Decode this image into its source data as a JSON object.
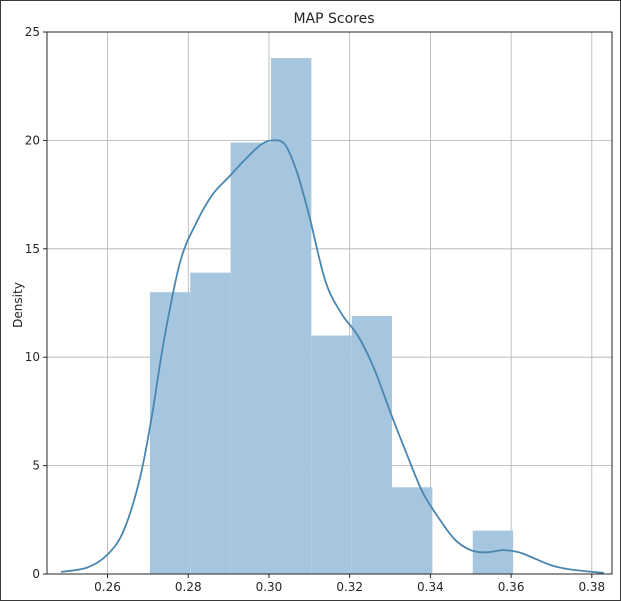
{
  "chart_data": {
    "type": "histogram",
    "title": "MAP Scores",
    "xlabel": "",
    "ylabel": "Density",
    "xlim": [
      0.245,
      0.385
    ],
    "ylim": [
      0,
      25
    ],
    "x_ticks": [
      0.26,
      0.28,
      0.3,
      0.32,
      0.34,
      0.36,
      0.38
    ],
    "x_tick_labels": [
      "0.26",
      "0.28",
      "0.30",
      "0.32",
      "0.34",
      "0.36",
      "0.38"
    ],
    "y_ticks": [
      0,
      5,
      10,
      15,
      20,
      25
    ],
    "y_tick_labels": [
      "0",
      "5",
      "10",
      "15",
      "20",
      "25"
    ],
    "grid": true,
    "bar_color": "#a6c6df",
    "kde_color": "#4a86b0",
    "bins": [
      {
        "x0": 0.2705,
        "x1": 0.2805,
        "density": 13.0
      },
      {
        "x0": 0.2805,
        "x1": 0.2905,
        "density": 13.9
      },
      {
        "x0": 0.2905,
        "x1": 0.3005,
        "density": 19.9
      },
      {
        "x0": 0.3005,
        "x1": 0.3105,
        "density": 23.8
      },
      {
        "x0": 0.3105,
        "x1": 0.3205,
        "density": 11.0
      },
      {
        "x0": 0.3205,
        "x1": 0.3305,
        "density": 11.9
      },
      {
        "x0": 0.3305,
        "x1": 0.3405,
        "density": 4.0
      },
      {
        "x0": 0.3405,
        "x1": 0.3505,
        "density": 0.0
      },
      {
        "x0": 0.3505,
        "x1": 0.3605,
        "density": 2.0
      }
    ],
    "kde": {
      "x": [
        0.2485,
        0.255,
        0.26,
        0.264,
        0.268,
        0.271,
        0.274,
        0.278,
        0.282,
        0.286,
        0.29,
        0.294,
        0.298,
        0.301,
        0.304,
        0.307,
        0.31,
        0.314,
        0.318,
        0.322,
        0.326,
        0.33,
        0.334,
        0.338,
        0.342,
        0.346,
        0.35,
        0.354,
        0.358,
        0.362,
        0.366,
        0.37,
        0.375,
        0.383
      ],
      "y": [
        0.1,
        0.3,
        0.9,
        2.0,
        4.4,
        7.3,
        10.8,
        14.4,
        16.2,
        17.5,
        18.3,
        19.1,
        19.8,
        20.0,
        19.8,
        18.5,
        16.5,
        13.5,
        12.0,
        11.0,
        9.5,
        7.5,
        5.6,
        3.8,
        2.6,
        1.6,
        1.1,
        1.0,
        1.1,
        1.0,
        0.7,
        0.4,
        0.2,
        0.05
      ]
    }
  }
}
